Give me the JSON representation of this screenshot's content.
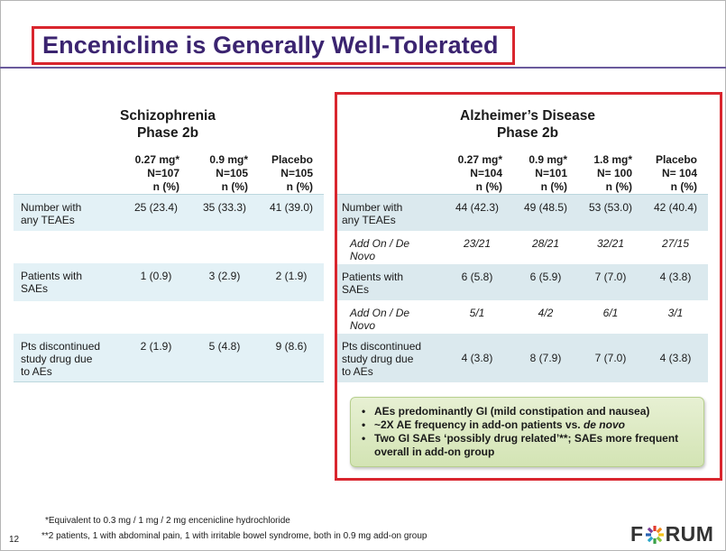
{
  "title": "Encenicline is Generally Well-Tolerated",
  "schizophrenia": {
    "title_line1": "Schizophrenia",
    "title_line2": "Phase 2b",
    "columns": [
      {
        "dose": "0.27 mg*",
        "n": "N=107",
        "unit": "n (%)"
      },
      {
        "dose": "0.9 mg*",
        "n": "N=105",
        "unit": "n (%)"
      },
      {
        "dose": "Placebo",
        "n": "N=105",
        "unit": "n (%)"
      }
    ],
    "rows": {
      "teae": {
        "label_1": "Number with",
        "label_2": "any TEAEs",
        "values": [
          "25 (23.4)",
          "35 (33.3)",
          "41 (39.0)"
        ]
      },
      "sae": {
        "label_1": "Patients with",
        "label_2": "SAEs",
        "values": [
          "1 (0.9)",
          "3 (2.9)",
          "2 (1.9)"
        ]
      },
      "disc": {
        "label_1": "Pts discontinued",
        "label_2": "study drug due",
        "label_3": "to AEs",
        "values": [
          "2 (1.9)",
          "5 (4.8)",
          "9 (8.6)"
        ]
      }
    }
  },
  "alzheimers": {
    "title_line1": "Alzheimer’s Disease",
    "title_line2": "Phase 2b",
    "columns": [
      {
        "dose": "0.27 mg*",
        "n": "N=104",
        "unit": "n (%)"
      },
      {
        "dose": "0.9 mg*",
        "n": "N=101",
        "unit": "n (%)"
      },
      {
        "dose": "1.8 mg*",
        "n": "N= 100",
        "unit": "n (%)"
      },
      {
        "dose": "Placebo",
        "n": "N= 104",
        "unit": "n (%)"
      }
    ],
    "rows": {
      "teae": {
        "label_1": "Number with",
        "label_2": "any TEAEs",
        "values": [
          "44 (42.3)",
          "49 (48.5)",
          "53 (53.0)",
          "42 (40.4)"
        ]
      },
      "teae_addon": {
        "label_1": "Add On / De",
        "label_2": "Novo",
        "values": [
          "23/21",
          "28/21",
          "32/21",
          "27/15"
        ]
      },
      "sae": {
        "label_1": "Patients with",
        "label_2": "SAEs",
        "values": [
          "6 (5.8)",
          "6 (5.9)",
          "7 (7.0)",
          "4 (3.8)"
        ]
      },
      "sae_addon": {
        "label_1": "Add On / De",
        "label_2": "Novo",
        "values": [
          "5/1",
          "4/2",
          "6/1",
          "3/1"
        ]
      },
      "disc": {
        "label_1": "Pts discontinued",
        "label_2": "study drug due",
        "label_3": "to AEs",
        "values": [
          "4 (3.8)",
          "8 (7.9)",
          "7 (7.0)",
          "4 (3.8)"
        ]
      }
    }
  },
  "callout": {
    "bullet": "•",
    "item1": "AEs predominantly GI (mild constipation and nausea)",
    "item2_prefix": "~2X AE frequency in add-on patients vs. ",
    "item2_emph": "de novo",
    "item3_line1": "Two GI SAEs ‘possibly drug related’**; SAEs more frequent",
    "item3_line2": "overall in add-on group"
  },
  "footnotes": {
    "note1": "*Equivalent to  0.3 mg / 1 mg / 2 mg encenicline hydrochloride",
    "note2": "**2 patients, 1 with abdominal pain, 1 with irritable bowel syndrome, both in 0.9 mg add-on group"
  },
  "page_number": "12",
  "logo": {
    "left": "F",
    "right": "RUM"
  },
  "colors": {
    "title": "#3b2470",
    "accent_red": "#d9262e",
    "table_shade": "#e3f1f6",
    "callout_green": "#d3e4b4"
  }
}
